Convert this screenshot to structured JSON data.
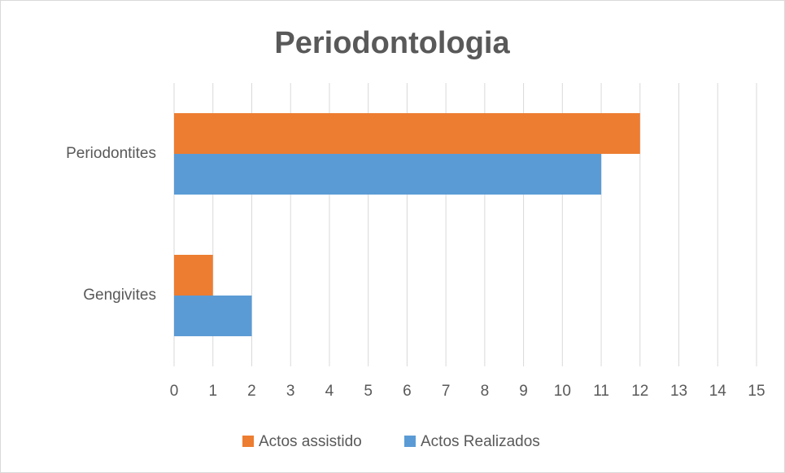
{
  "chart_data": {
    "type": "bar",
    "orientation": "horizontal",
    "title": "Periodontologia",
    "categories": [
      "Gengivites",
      "Periodontites"
    ],
    "series": [
      {
        "name": "Actos assistido",
        "color": "#ed7d31",
        "values": [
          1,
          12
        ]
      },
      {
        "name": "Actos Realizados",
        "color": "#5b9bd5",
        "values": [
          2,
          11
        ]
      }
    ],
    "xlim": [
      0,
      15
    ],
    "xticks": [
      0,
      1,
      2,
      3,
      4,
      5,
      6,
      7,
      8,
      9,
      10,
      11,
      12,
      13,
      14,
      15
    ],
    "grid": true,
    "legend": "bottom"
  }
}
